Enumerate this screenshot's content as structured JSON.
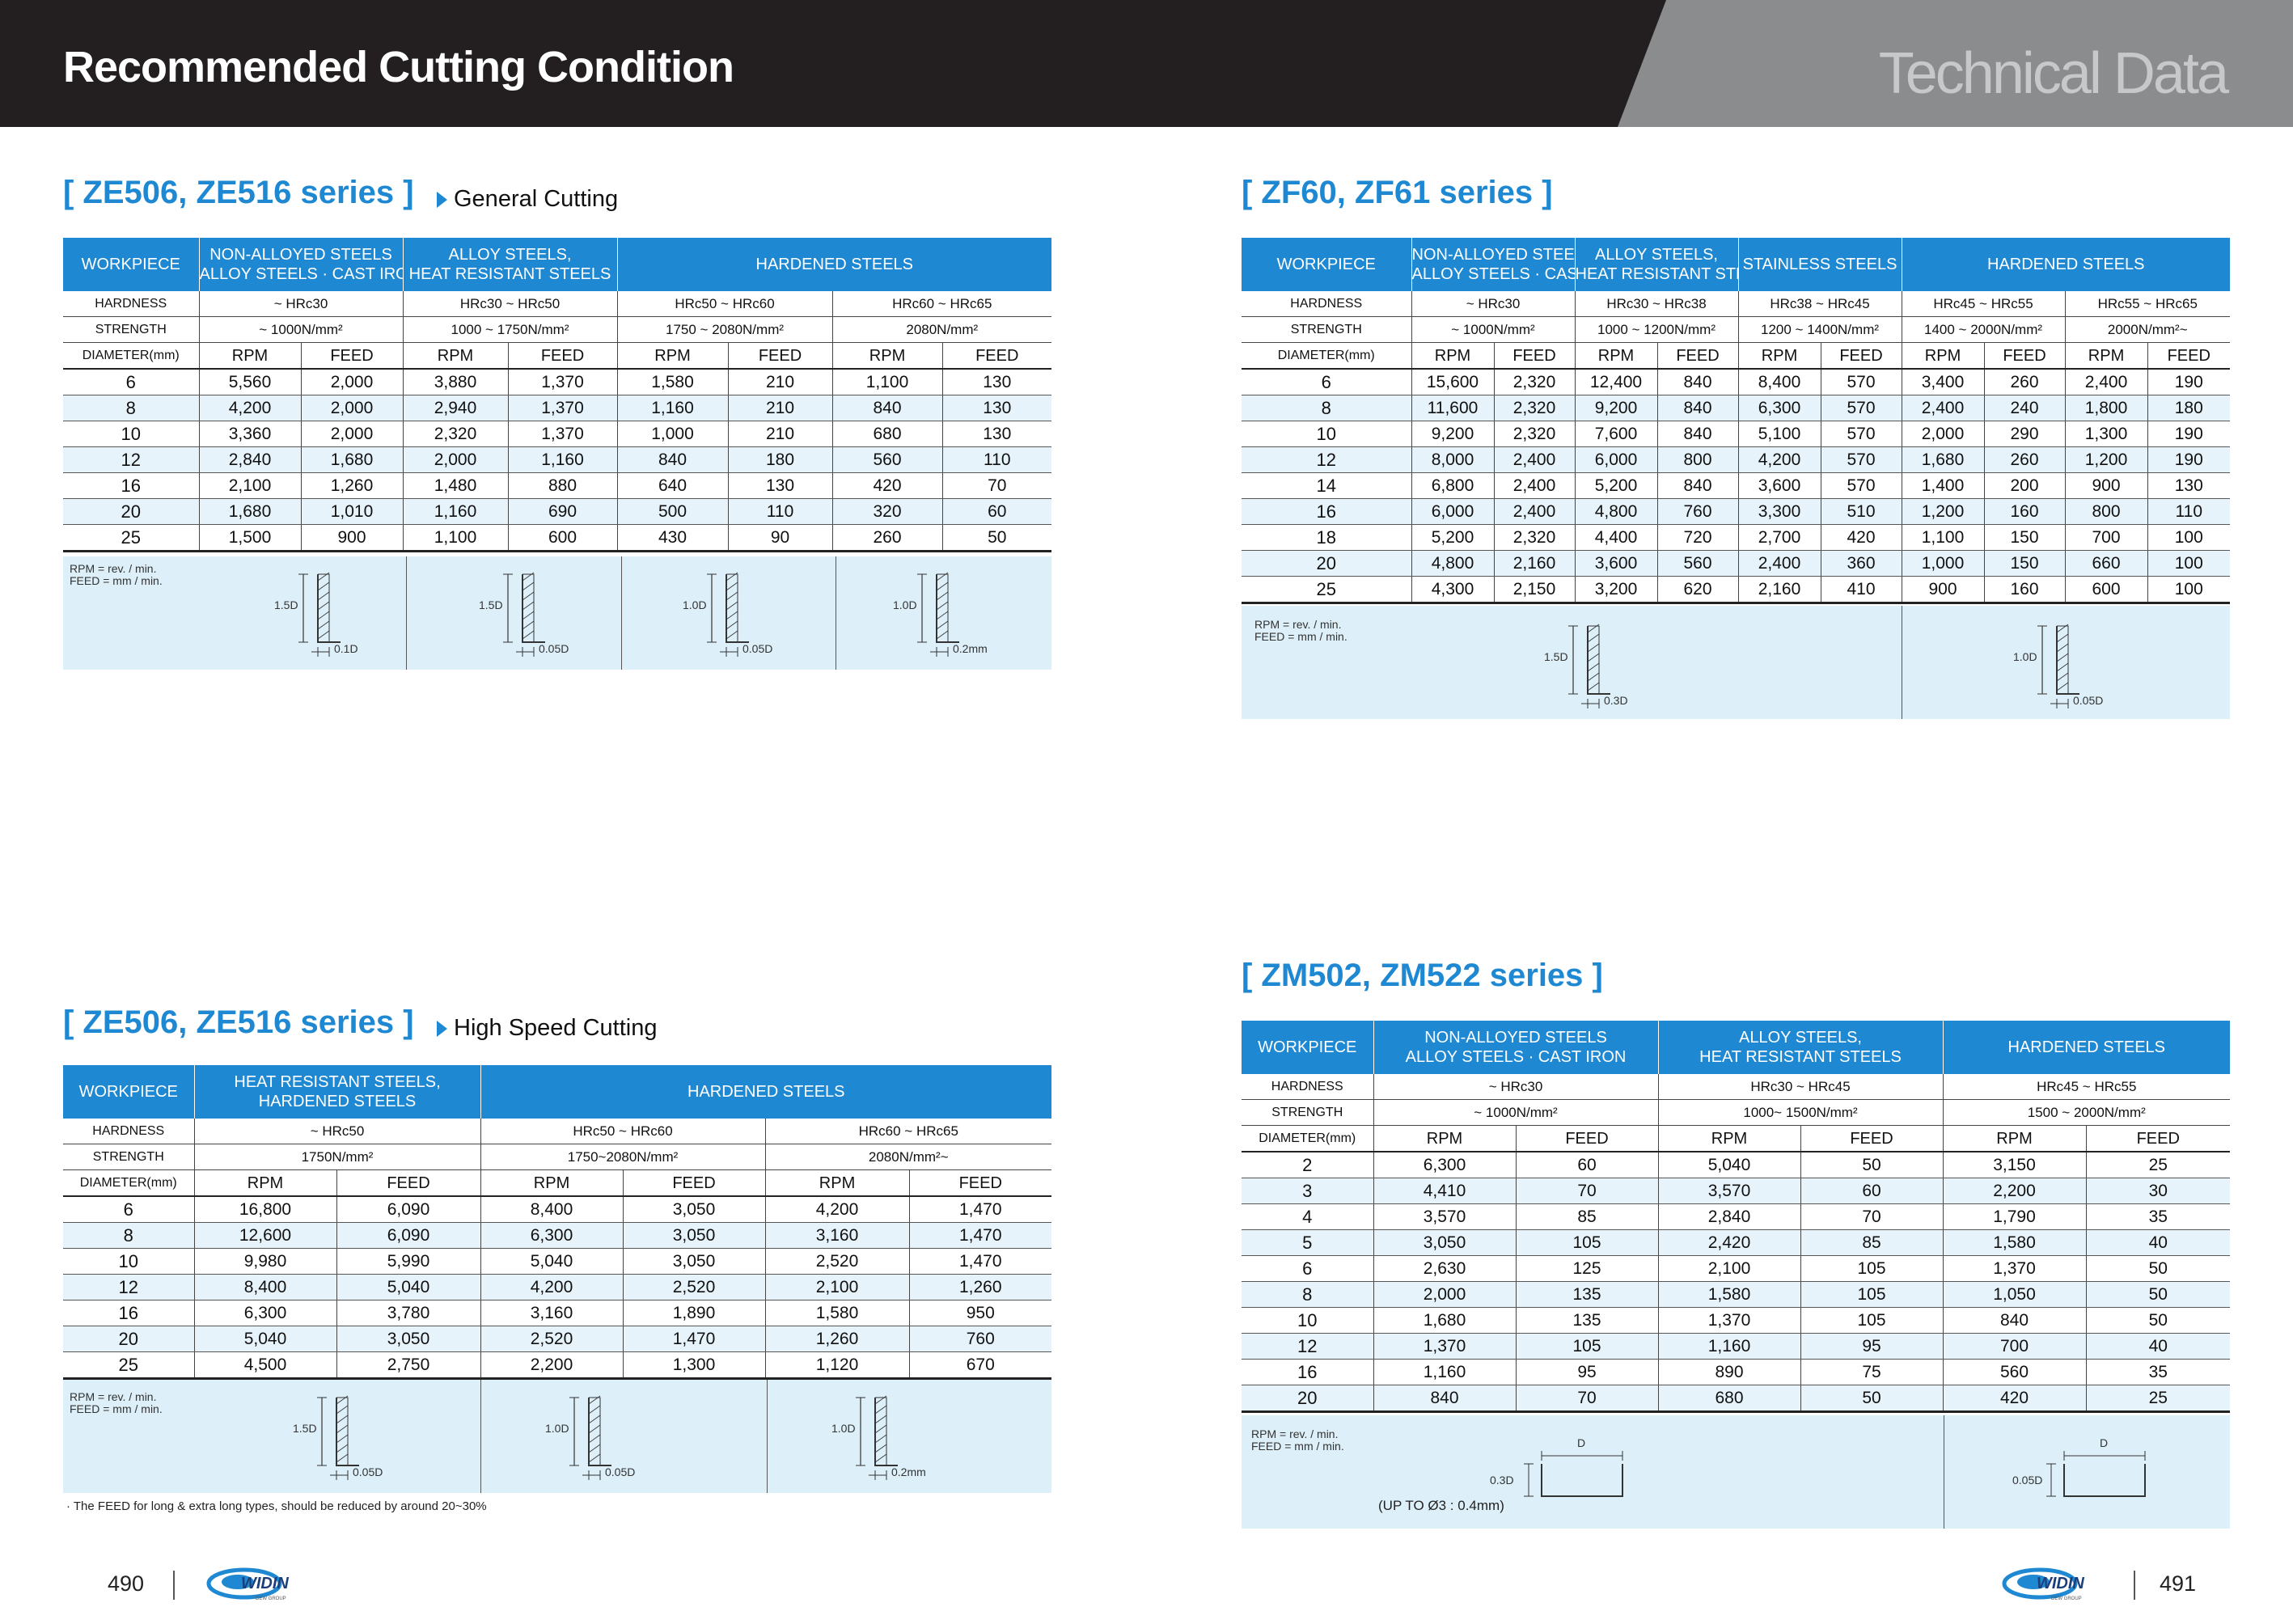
{
  "header": {
    "title": "Recommended Cutting Condition",
    "tech": "Technical Data"
  },
  "labels": {
    "workpiece": "WORKPIECE",
    "hardness": "HARDNESS",
    "strength": "STRENGTH",
    "diameter": "DIAMETER(mm)",
    "rpm": "RPM",
    "feed": "FEED"
  },
  "note": {
    "rpm": "RPM = rev. / min.",
    "feed": "FEED = mm / min."
  },
  "t1": {
    "title": "[ ZE506, ZE516 series ]",
    "sub": "General Cutting",
    "groups": [
      {
        "name": "NON-ALLOYED STEELS\nALLOY STEELS · CAST IRON",
        "span": 2
      },
      {
        "name": "ALLOY STEELS,\nHEAT RESISTANT STEELS",
        "span": 2
      },
      {
        "name": "HARDENED STEELS",
        "span": 4
      }
    ],
    "hardness": [
      {
        "v": "~ HRc30",
        "span": 2
      },
      {
        "v": "HRc30 ~ HRc50",
        "span": 2
      },
      {
        "v": "HRc50 ~ HRc60",
        "span": 2
      },
      {
        "v": "HRc60 ~ HRc65",
        "span": 2
      }
    ],
    "strength": [
      {
        "v": "~ 1000N/mm²",
        "span": 2
      },
      {
        "v": "1000 ~ 1750N/mm²",
        "span": 2
      },
      {
        "v": "1750 ~ 2080N/mm²",
        "span": 2
      },
      {
        "v": "2080N/mm²",
        "span": 2
      }
    ],
    "rows": [
      [
        "6",
        "5,560",
        "2,000",
        "3,880",
        "1,370",
        "1,580",
        "210",
        "1,100",
        "130"
      ],
      [
        "8",
        "4,200",
        "2,000",
        "2,940",
        "1,370",
        "1,160",
        "210",
        "840",
        "130"
      ],
      [
        "10",
        "3,360",
        "2,000",
        "2,320",
        "1,370",
        "1,000",
        "210",
        "680",
        "130"
      ],
      [
        "12",
        "2,840",
        "1,680",
        "2,000",
        "1,160",
        "840",
        "180",
        "560",
        "110"
      ],
      [
        "16",
        "2,100",
        "1,260",
        "1,480",
        "880",
        "640",
        "130",
        "420",
        "70"
      ],
      [
        "20",
        "1,680",
        "1,010",
        "1,160",
        "690",
        "500",
        "110",
        "320",
        "60"
      ],
      [
        "25",
        "1,500",
        "900",
        "1,100",
        "600",
        "430",
        "90",
        "260",
        "50"
      ]
    ],
    "diagrams": [
      {
        "h": "1.5D",
        "w": "0.1D"
      },
      {
        "h": "1.5D",
        "w": "0.05D"
      },
      {
        "h": "1.0D",
        "w": "0.05D"
      },
      {
        "h": "1.0D",
        "w": "0.2mm"
      }
    ]
  },
  "t2": {
    "title": "[ ZE506, ZE516 series ]",
    "sub": "High Speed Cutting",
    "groups": [
      {
        "name": "HEAT RESISTANT STEELS,\nHARDENED STEELS",
        "span": 2
      },
      {
        "name": "HARDENED STEELS",
        "span": 4
      }
    ],
    "hardness": [
      {
        "v": "~ HRc50",
        "span": 2
      },
      {
        "v": "HRc50 ~ HRc60",
        "span": 2
      },
      {
        "v": "HRc60 ~ HRc65",
        "span": 2
      }
    ],
    "strength": [
      {
        "v": "1750N/mm²",
        "span": 2
      },
      {
        "v": "1750~2080N/mm²",
        "span": 2
      },
      {
        "v": "2080N/mm²~",
        "span": 2
      }
    ],
    "rows": [
      [
        "6",
        "16,800",
        "6,090",
        "8,400",
        "3,050",
        "4,200",
        "1,470"
      ],
      [
        "8",
        "12,600",
        "6,090",
        "6,300",
        "3,050",
        "3,160",
        "1,470"
      ],
      [
        "10",
        "9,980",
        "5,990",
        "5,040",
        "3,050",
        "2,520",
        "1,470"
      ],
      [
        "12",
        "8,400",
        "5,040",
        "4,200",
        "2,520",
        "2,100",
        "1,260"
      ],
      [
        "16",
        "6,300",
        "3,780",
        "3,160",
        "1,890",
        "1,580",
        "950"
      ],
      [
        "20",
        "5,040",
        "3,050",
        "2,520",
        "1,470",
        "1,260",
        "760"
      ],
      [
        "25",
        "4,500",
        "2,750",
        "2,200",
        "1,300",
        "1,120",
        "670"
      ]
    ],
    "diagrams": [
      {
        "h": "1.5D",
        "w": "0.05D"
      },
      {
        "h": "1.0D",
        "w": "0.05D"
      },
      {
        "h": "1.0D",
        "w": "0.2mm"
      }
    ],
    "footnote": "· The FEED for long & extra long types, should be reduced by around 20~30%"
  },
  "t3": {
    "title": "[ ZF60, ZF61 series ]",
    "groups": [
      {
        "name": "NON-ALLOYED STEELS\nALLOY STEELS · CAST IRON",
        "span": 2
      },
      {
        "name": "ALLOY STEELS,\nHEAT RESISTANT STEELS",
        "span": 2
      },
      {
        "name": "STAINLESS STEELS",
        "span": 2
      },
      {
        "name": "HARDENED STEELS",
        "span": 4
      }
    ],
    "hardness": [
      {
        "v": "~ HRc30",
        "span": 2
      },
      {
        "v": "HRc30 ~ HRc38",
        "span": 2
      },
      {
        "v": "HRc38 ~ HRc45",
        "span": 2
      },
      {
        "v": "HRc45 ~ HRc55",
        "span": 2
      },
      {
        "v": "HRc55 ~ HRc65",
        "span": 2
      }
    ],
    "strength": [
      {
        "v": "~ 1000N/mm²",
        "span": 2
      },
      {
        "v": "1000 ~ 1200N/mm²",
        "span": 2
      },
      {
        "v": "1200 ~ 1400N/mm²",
        "span": 2
      },
      {
        "v": "1400 ~ 2000N/mm²",
        "span": 2
      },
      {
        "v": "2000N/mm²~",
        "span": 2
      }
    ],
    "rows": [
      [
        "6",
        "15,600",
        "2,320",
        "12,400",
        "840",
        "8,400",
        "570",
        "3,400",
        "260",
        "2,400",
        "190"
      ],
      [
        "8",
        "11,600",
        "2,320",
        "9,200",
        "840",
        "6,300",
        "570",
        "2,400",
        "240",
        "1,800",
        "180"
      ],
      [
        "10",
        "9,200",
        "2,320",
        "7,600",
        "840",
        "5,100",
        "570",
        "2,000",
        "290",
        "1,300",
        "190"
      ],
      [
        "12",
        "8,000",
        "2,400",
        "6,000",
        "800",
        "4,200",
        "570",
        "1,680",
        "260",
        "1,200",
        "190"
      ],
      [
        "14",
        "6,800",
        "2,400",
        "5,200",
        "840",
        "3,600",
        "570",
        "1,400",
        "200",
        "900",
        "130"
      ],
      [
        "16",
        "6,000",
        "2,400",
        "4,800",
        "760",
        "3,300",
        "510",
        "1,200",
        "160",
        "800",
        "110"
      ],
      [
        "18",
        "5,200",
        "2,320",
        "4,400",
        "720",
        "2,700",
        "420",
        "1,100",
        "150",
        "700",
        "100"
      ],
      [
        "20",
        "4,800",
        "2,160",
        "3,600",
        "560",
        "2,400",
        "360",
        "1,000",
        "150",
        "660",
        "100"
      ],
      [
        "25",
        "4,300",
        "2,150",
        "3,200",
        "620",
        "2,160",
        "410",
        "900",
        "160",
        "600",
        "100"
      ]
    ],
    "diagrams": [
      {
        "h": "1.5D",
        "w": "0.3D"
      },
      {
        "h": "1.0D",
        "w": "0.05D"
      }
    ]
  },
  "t4": {
    "title": "[ ZM502, ZM522 series ]",
    "groups": [
      {
        "name": "NON-ALLOYED STEELS\nALLOY STEELS · CAST IRON",
        "span": 2
      },
      {
        "name": "ALLOY STEELS,\nHEAT RESISTANT STEELS",
        "span": 2
      },
      {
        "name": "HARDENED STEELS",
        "span": 2
      }
    ],
    "hardness": [
      {
        "v": "~ HRc30",
        "span": 2
      },
      {
        "v": "HRc30 ~ HRc45",
        "span": 2
      },
      {
        "v": "HRc45 ~ HRc55",
        "span": 2
      }
    ],
    "strength": [
      {
        "v": "~ 1000N/mm²",
        "span": 2
      },
      {
        "v": "1000~ 1500N/mm²",
        "span": 2
      },
      {
        "v": "1500 ~ 2000N/mm²",
        "span": 2
      }
    ],
    "rows": [
      [
        "2",
        "6,300",
        "60",
        "5,040",
        "50",
        "3,150",
        "25"
      ],
      [
        "3",
        "4,410",
        "70",
        "3,570",
        "60",
        "2,200",
        "30"
      ],
      [
        "4",
        "3,570",
        "85",
        "2,840",
        "70",
        "1,790",
        "35"
      ],
      [
        "5",
        "3,050",
        "105",
        "2,420",
        "85",
        "1,580",
        "40"
      ],
      [
        "6",
        "2,630",
        "125",
        "2,100",
        "105",
        "1,370",
        "50"
      ],
      [
        "8",
        "2,000",
        "135",
        "1,580",
        "105",
        "1,050",
        "50"
      ],
      [
        "10",
        "1,680",
        "135",
        "1,370",
        "105",
        "840",
        "50"
      ],
      [
        "12",
        "1,370",
        "105",
        "1,160",
        "95",
        "700",
        "40"
      ],
      [
        "16",
        "1,160",
        "95",
        "890",
        "75",
        "560",
        "35"
      ],
      [
        "20",
        "840",
        "70",
        "680",
        "50",
        "420",
        "25"
      ]
    ],
    "diagrams": [
      {
        "top": "D",
        "h": "0.3D"
      },
      {
        "top": "D",
        "h": "0.05D"
      }
    ],
    "upto": "(UP TO   Ø3 : 0.4mm)"
  },
  "footer": {
    "left_page": "490",
    "right_page": "491",
    "logo_text": "WIDIN",
    "logo_sub": "DEW GROUP"
  },
  "colors": {
    "accent": "#1e88d2",
    "header_dark": "#231f20",
    "header_gray": "#8b8c8e",
    "note_bg": "#ddeff8"
  }
}
